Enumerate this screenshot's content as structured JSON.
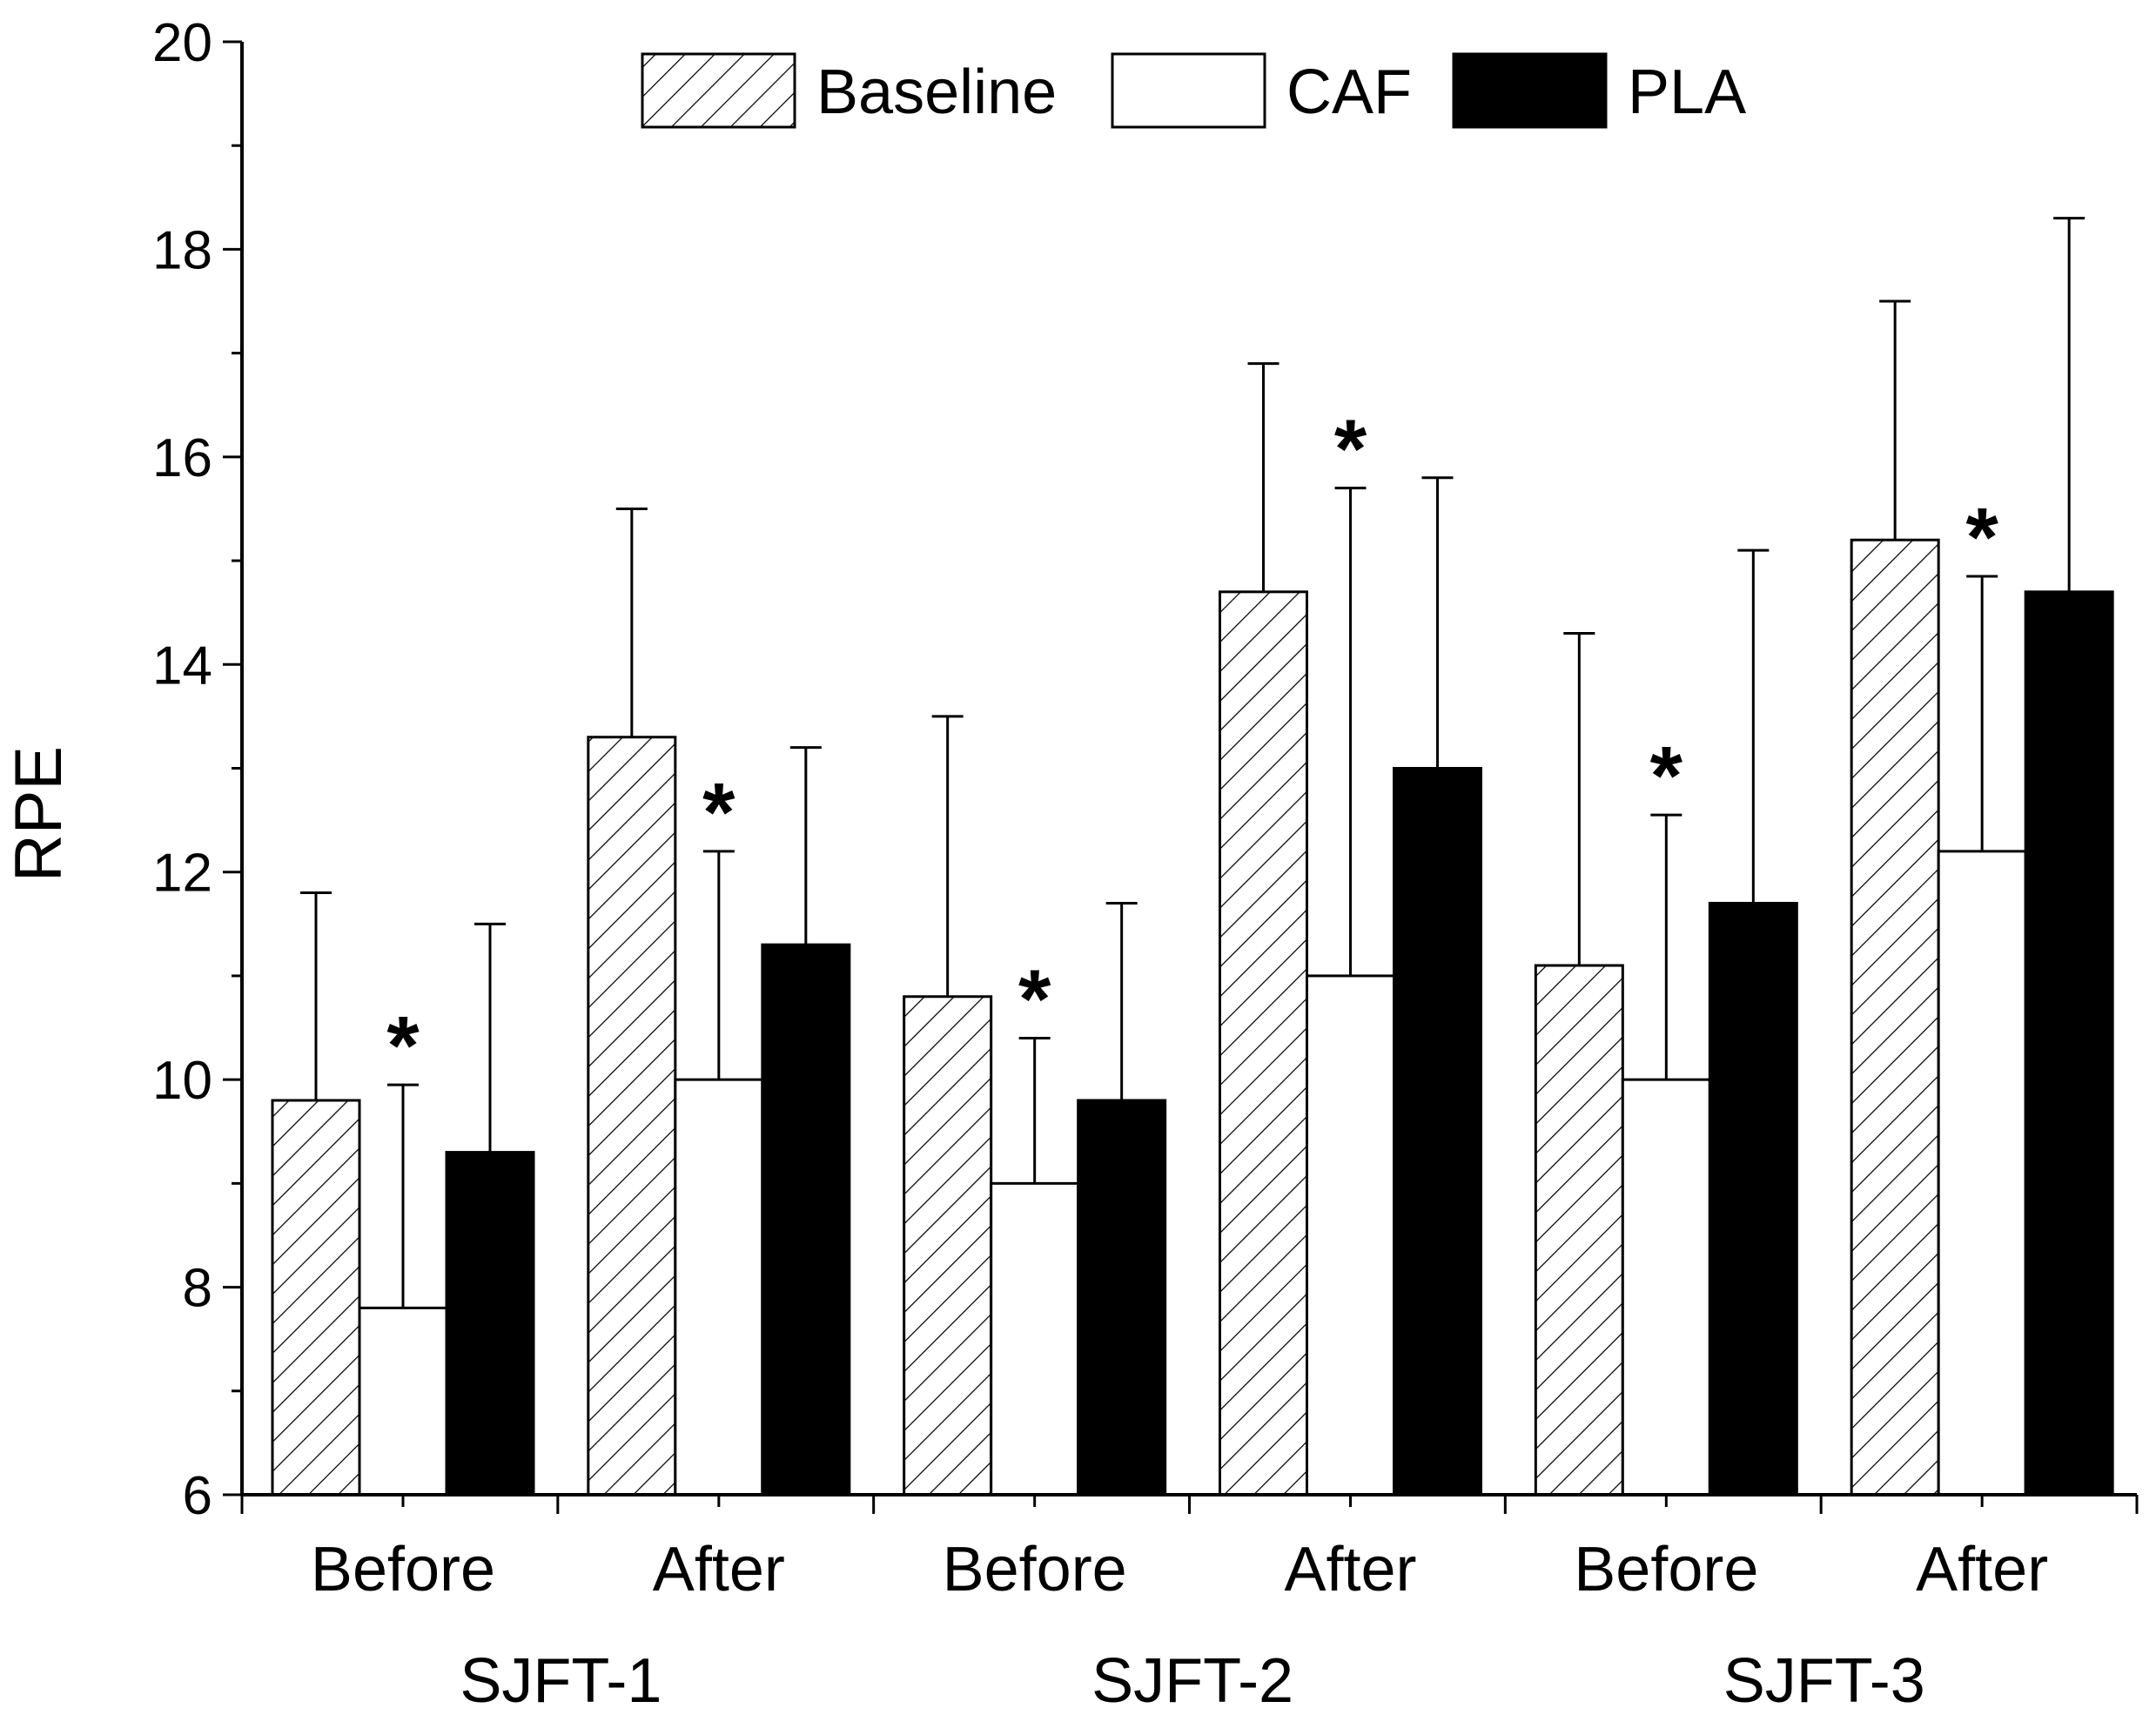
{
  "chart_data": {
    "type": "bar",
    "title": "",
    "xlabel": "",
    "ylabel": "RPE",
    "ylim": [
      6,
      20
    ],
    "yticks": [
      6,
      8,
      10,
      12,
      14,
      16,
      18,
      20
    ],
    "grid": false,
    "legend_position": "top",
    "categories": [
      "Before",
      "After",
      "Before",
      "After",
      "Before",
      "After"
    ],
    "groups": [
      {
        "label": "SJFT-1",
        "categories": [
          0,
          1
        ]
      },
      {
        "label": "SJFT-2",
        "categories": [
          2,
          3
        ]
      },
      {
        "label": "SJFT-3",
        "categories": [
          4,
          5
        ]
      }
    ],
    "series": [
      {
        "name": "Baseline",
        "fill": "hatch",
        "values": [
          9.8,
          13.3,
          10.8,
          14.7,
          11.1,
          15.2
        ],
        "errors": [
          2.0,
          2.2,
          2.7,
          2.2,
          3.2,
          2.3
        ]
      },
      {
        "name": "CAF",
        "fill": "white",
        "values": [
          7.8,
          10.0,
          9.0,
          11.0,
          10.0,
          12.2
        ],
        "errors": [
          2.15,
          2.2,
          1.4,
          4.7,
          2.55,
          2.65
        ]
      },
      {
        "name": "PLA",
        "fill": "black",
        "values": [
          9.3,
          11.3,
          9.8,
          13.0,
          11.7,
          14.7
        ],
        "errors": [
          2.2,
          1.9,
          1.9,
          2.8,
          3.4,
          3.6
        ]
      }
    ],
    "annotations": [
      {
        "text": "*",
        "category": 0,
        "series": "CAF"
      },
      {
        "text": "*",
        "category": 1,
        "series": "CAF"
      },
      {
        "text": "*",
        "category": 2,
        "series": "CAF"
      },
      {
        "text": "*",
        "category": 3,
        "series": "CAF"
      },
      {
        "text": "*",
        "category": 4,
        "series": "CAF"
      },
      {
        "text": "*",
        "category": 5,
        "series": "CAF"
      }
    ]
  }
}
